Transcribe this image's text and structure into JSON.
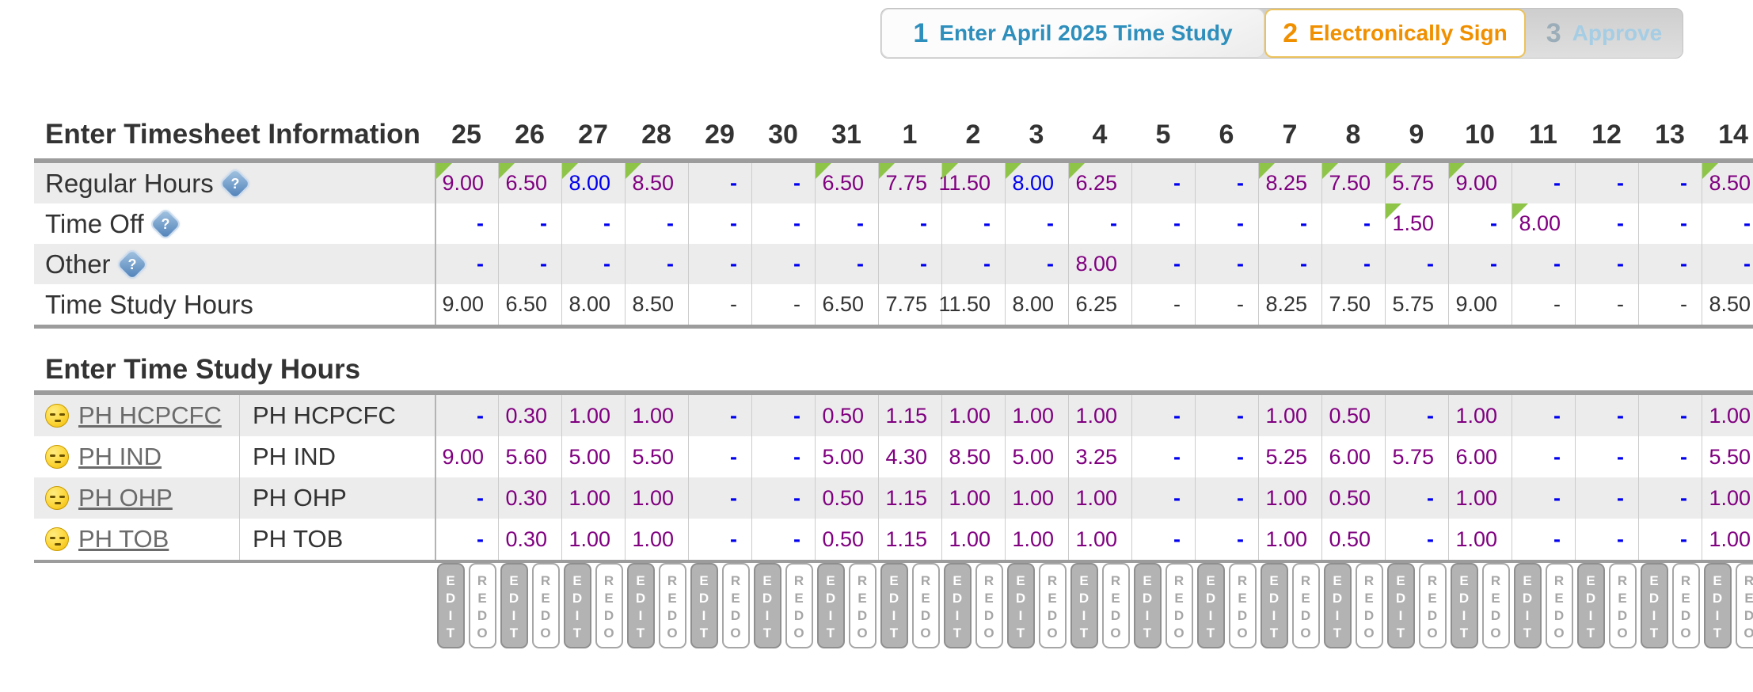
{
  "tabs": [
    {
      "number": "1",
      "label": "Enter April 2025 Time Study",
      "state": "done"
    },
    {
      "number": "2",
      "label": "Electronically Sign",
      "state": "current"
    },
    {
      "number": "3",
      "label": "Approve",
      "state": "disabled"
    }
  ],
  "icons": {
    "help_glyph": "?",
    "row_face": "pensive-face"
  },
  "colors": {
    "value_purple": "#800080",
    "value_blue": "#0000ee",
    "value_black": "#333333",
    "edited_marker_green": "#8ec549",
    "stripe_gray": "#ececec",
    "step_done_blue": "#2e8fbc",
    "step_current_orange": "#f09000",
    "step_current_border": "#ecc25c",
    "step_disabled_blue": "#a5cde4"
  },
  "timesheet": {
    "title": "Enter Timesheet Information",
    "columns": [
      "25",
      "26",
      "27",
      "28",
      "29",
      "30",
      "31",
      "1",
      "2",
      "3",
      "4",
      "5",
      "6",
      "7",
      "8",
      "9",
      "10",
      "11",
      "12",
      "13",
      "14"
    ],
    "rows": [
      {
        "label": "Regular Hours",
        "has_help": true,
        "number_color": "purple",
        "dash_color": "blue",
        "values": [
          "9.00",
          "6.50",
          "8.00",
          "8.50",
          "-",
          "-",
          "6.50",
          "7.75",
          "11.50",
          "8.00",
          "6.25",
          "-",
          "-",
          "8.25",
          "7.50",
          "5.75",
          "9.00",
          "-",
          "-",
          "-",
          "8.50"
        ],
        "blue": [
          2,
          9
        ],
        "triangles": [
          0,
          1,
          2,
          3,
          6,
          7,
          8,
          9,
          10,
          13,
          14,
          15,
          16,
          20
        ]
      },
      {
        "label": "Time Off",
        "has_help": true,
        "number_color": "purple",
        "dash_color": "blue",
        "values": [
          "-",
          "-",
          "-",
          "-",
          "-",
          "-",
          "-",
          "-",
          "-",
          "-",
          "-",
          "-",
          "-",
          "-",
          "-",
          "1.50",
          "-",
          "8.00",
          "-",
          "-",
          "-"
        ],
        "blue": [],
        "triangles": [
          15,
          17
        ]
      },
      {
        "label": "Other",
        "has_help": true,
        "number_color": "purple",
        "dash_color": "blue",
        "values": [
          "-",
          "-",
          "-",
          "-",
          "-",
          "-",
          "-",
          "-",
          "-",
          "-",
          "8.00",
          "-",
          "-",
          "-",
          "-",
          "-",
          "-",
          "-",
          "-",
          "-",
          "-"
        ],
        "blue": [],
        "triangles": []
      },
      {
        "label": "Time Study Hours",
        "has_help": false,
        "number_color": "black",
        "dash_color": "black",
        "values": [
          "9.00",
          "6.50",
          "8.00",
          "8.50",
          "-",
          "-",
          "6.50",
          "7.75",
          "11.50",
          "8.00",
          "6.25",
          "-",
          "-",
          "8.25",
          "7.50",
          "5.75",
          "9.00",
          "-",
          "-",
          "-",
          "8.50"
        ],
        "blue": [],
        "triangles": []
      }
    ]
  },
  "time_study": {
    "title": "Enter Time Study Hours",
    "rows": [
      {
        "link": "PH HCPCFC",
        "name": "PH HCPCFC",
        "number_color": "purple",
        "dash_color": "blue",
        "values": [
          "-",
          "0.30",
          "1.00",
          "1.00",
          "-",
          "-",
          "0.50",
          "1.15",
          "1.00",
          "1.00",
          "1.00",
          "-",
          "-",
          "1.00",
          "0.50",
          "-",
          "1.00",
          "-",
          "-",
          "-",
          "1.00"
        ]
      },
      {
        "link": "PH IND",
        "name": "PH IND",
        "number_color": "purple",
        "dash_color": "blue",
        "values": [
          "9.00",
          "5.60",
          "5.00",
          "5.50",
          "-",
          "-",
          "5.00",
          "4.30",
          "8.50",
          "5.00",
          "3.25",
          "-",
          "-",
          "5.25",
          "6.00",
          "5.75",
          "6.00",
          "-",
          "-",
          "-",
          "5.50"
        ]
      },
      {
        "link": "PH OHP",
        "name": "PH OHP",
        "number_color": "purple",
        "dash_color": "blue",
        "values": [
          "-",
          "0.30",
          "1.00",
          "1.00",
          "-",
          "-",
          "0.50",
          "1.15",
          "1.00",
          "1.00",
          "1.00",
          "-",
          "-",
          "1.00",
          "0.50",
          "-",
          "1.00",
          "-",
          "-",
          "-",
          "1.00"
        ]
      },
      {
        "link": "PH TOB",
        "name": "PH TOB",
        "number_color": "purple",
        "dash_color": "blue",
        "values": [
          "-",
          "0.30",
          "1.00",
          "1.00",
          "-",
          "-",
          "0.50",
          "1.15",
          "1.00",
          "1.00",
          "1.00",
          "-",
          "-",
          "1.00",
          "0.50",
          "-",
          "1.00",
          "-",
          "-",
          "-",
          "1.00"
        ]
      }
    ]
  },
  "actions": {
    "edit_label": "EDIT",
    "redo_label": "REDO"
  }
}
